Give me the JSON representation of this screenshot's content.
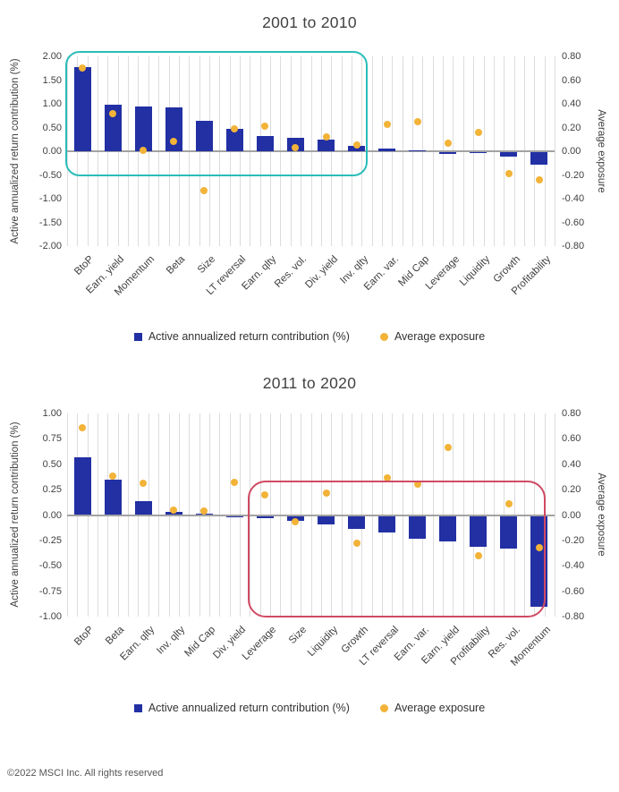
{
  "page": {
    "footer": "©2022 MSCI Inc. All rights reserved"
  },
  "colors": {
    "bar": "#2230a4",
    "dot": "#f2b338",
    "highlight_top_chart": "#2abdb9",
    "highlight_bottom_chart": "#d04a63",
    "gridline": "#dcdcdc",
    "zero_line": "#a2a2a2",
    "text": "#3f3f3f"
  },
  "chart_data": [
    {
      "type": "bar",
      "title": "2001 to 2010",
      "ylabel": "Active annualized return contribution (%)",
      "ylabel_right": "Average exposure",
      "ylim_left": [
        -2.0,
        2.0
      ],
      "ylim_right": [
        -0.8,
        0.8
      ],
      "yticks_left": [
        "2.00",
        "1.50",
        "1.00",
        "0.50",
        "0.00",
        "-0.50",
        "-1.00",
        "-1.50",
        "-2.00"
      ],
      "yticks_right": [
        "0.80",
        "0.60",
        "0.40",
        "0.20",
        "0.00",
        "-0.20",
        "-0.40",
        "-0.60",
        "-0.80"
      ],
      "grid": "vertical-only",
      "legend_position": "bottom",
      "categories": [
        "BtoP",
        "Earn. yield",
        "Momentum",
        "Beta",
        "Size",
        "LT reversal",
        "Earn. qlty",
        "Res. vol.",
        "Div. yield",
        "Inv. qlty",
        "Earn. var.",
        "Mid Cap",
        "Leverage",
        "Liquidity",
        "Growth",
        "Profitability"
      ],
      "series": [
        {
          "name": "Active annualized return contribution (%)",
          "type": "bar",
          "axis": "left",
          "values": [
            1.78,
            0.98,
            0.94,
            0.92,
            0.65,
            0.48,
            0.33,
            0.29,
            0.24,
            0.12,
            0.05,
            0.01,
            -0.05,
            -0.04,
            -0.12,
            -0.29
          ]
        },
        {
          "name": "Average exposure",
          "type": "scatter",
          "axis": "right",
          "values": [
            0.7,
            0.32,
            0.01,
            0.08,
            -0.33,
            0.19,
            0.21,
            0.03,
            0.12,
            0.05,
            0.23,
            0.25,
            0.07,
            0.16,
            -0.19,
            -0.24
          ]
        }
      ],
      "annotation_box": {
        "color": "#2abdb9",
        "from_category": "BtoP",
        "to_category": "Inv. qlty",
        "from_index": 0,
        "to_index": 9,
        "top_value_left_axis": 2.11,
        "bottom_value_left_axis": -0.45
      }
    },
    {
      "type": "bar",
      "title": "2011 to 2020",
      "ylabel": "Active annualized return contribution (%)",
      "ylabel_right": "Average exposure",
      "ylim_left": [
        -1.0,
        1.0
      ],
      "ylim_right": [
        -0.8,
        0.8
      ],
      "yticks_left": [
        "1.00",
        "0.75",
        "0.50",
        "0.25",
        "0.00",
        "-0.25",
        "-0.50",
        "-0.75",
        "-1.00"
      ],
      "yticks_right": [
        "0.80",
        "0.60",
        "0.40",
        "0.20",
        "0.00",
        "-0.20",
        "-0.40",
        "-0.60",
        "-0.80"
      ],
      "grid": "vertical-only",
      "legend_position": "bottom",
      "categories": [
        "BtoP",
        "Beta",
        "Earn. qlty",
        "Inv. qlty",
        "Mid Cap",
        "Div. yield",
        "Leverage",
        "Size",
        "Liquidity",
        "Growth",
        "LT reversal",
        "Earn. var.",
        "Earn. yield",
        "Profitability",
        "Res. vol.",
        "Momentum"
      ],
      "series": [
        {
          "name": "Active annualized return contribution (%)",
          "type": "bar",
          "axis": "left",
          "values": [
            0.57,
            0.35,
            0.14,
            0.03,
            0.01,
            -0.02,
            -0.03,
            -0.06,
            -0.09,
            -0.14,
            -0.17,
            -0.23,
            -0.26,
            -0.31,
            -0.33,
            -0.9
          ]
        },
        {
          "name": "Average exposure",
          "type": "scatter",
          "axis": "right",
          "values": [
            0.69,
            0.31,
            0.25,
            0.04,
            0.03,
            0.26,
            0.16,
            -0.05,
            0.17,
            -0.22,
            0.29,
            0.24,
            0.53,
            -0.32,
            0.09,
            -0.26
          ]
        }
      ],
      "annotation_box": {
        "color": "#d04a63",
        "from_category": "Leverage",
        "to_category": "Momentum",
        "from_index": 6,
        "to_index": 15,
        "top_value_left_axis": 0.34,
        "bottom_value_left_axis": -0.97
      }
    }
  ]
}
